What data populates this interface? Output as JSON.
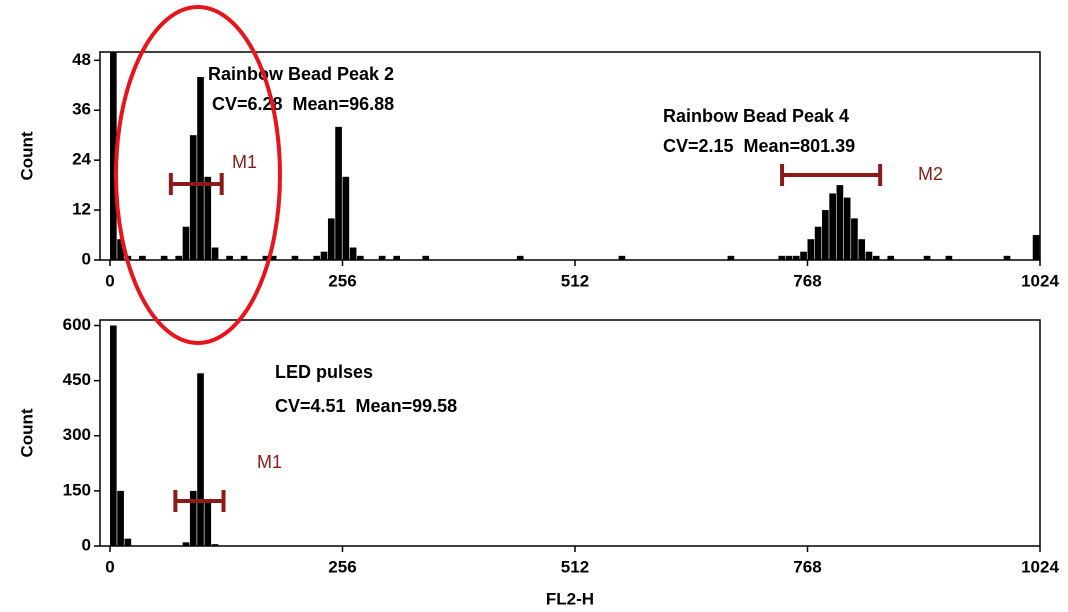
{
  "chart_data": [
    {
      "type": "histogram",
      "ylabel": "Count",
      "color": "#000000",
      "xlim": [
        -11,
        1024
      ],
      "ylim": [
        0,
        50
      ],
      "xticks": [
        0,
        256,
        512,
        768,
        1024
      ],
      "yticks": [
        0,
        12,
        24,
        36,
        48
      ],
      "bins": [
        0,
        8,
        16,
        24,
        32,
        40,
        48,
        56,
        64,
        72,
        80,
        88,
        96,
        104,
        112,
        120,
        128,
        136,
        144,
        152,
        160,
        168,
        176,
        184,
        192,
        200,
        208,
        216,
        224,
        232,
        240,
        248,
        256,
        264,
        272,
        280,
        288,
        296,
        304,
        312,
        320,
        328,
        336,
        344,
        352,
        360,
        368,
        376,
        384,
        392,
        400,
        408,
        416,
        424,
        432,
        440,
        448,
        456,
        464,
        472,
        480,
        488,
        496,
        504,
        512,
        520,
        528,
        536,
        544,
        552,
        560,
        568,
        576,
        584,
        592,
        600,
        608,
        616,
        624,
        632,
        640,
        648,
        656,
        664,
        672,
        680,
        688,
        696,
        704,
        712,
        720,
        728,
        736,
        744,
        752,
        760,
        768,
        776,
        784,
        792,
        800,
        808,
        816,
        824,
        832,
        840,
        848,
        856,
        864,
        872,
        880,
        888,
        896,
        904,
        912,
        920,
        928,
        936,
        944,
        952,
        960,
        968,
        976,
        984,
        992,
        1000,
        1008,
        1016,
        1024
      ],
      "values": [
        50,
        5,
        1,
        0,
        1,
        0,
        0,
        1,
        0,
        1,
        8,
        30,
        44,
        20,
        3,
        0,
        1,
        0,
        1,
        0,
        0,
        1,
        1,
        0,
        0,
        1,
        0,
        0,
        1,
        2,
        10,
        32,
        20,
        3,
        1,
        0,
        0,
        1,
        0,
        1,
        0,
        0,
        0,
        1,
        0,
        0,
        0,
        0,
        0,
        0,
        0,
        0,
        0,
        0,
        0,
        0,
        1,
        0,
        0,
        0,
        0,
        0,
        0,
        0,
        0,
        0,
        0,
        0,
        0,
        0,
        1,
        0,
        0,
        0,
        0,
        0,
        0,
        0,
        0,
        0,
        0,
        0,
        0,
        0,
        0,
        1,
        0,
        0,
        0,
        0,
        0,
        0,
        1,
        1,
        1,
        2,
        5,
        8,
        12,
        16,
        18,
        15,
        10,
        5,
        2,
        1,
        0,
        1,
        0,
        0,
        0,
        0,
        1,
        0,
        0,
        1,
        0,
        0,
        0,
        0,
        0,
        0,
        0,
        1,
        0,
        0,
        0,
        6
      ],
      "annotations": [
        "Rainbow Bead Peak 2",
        "CV=6.28  Mean=96.88",
        "Rainbow Bead Peak 4",
        "CV=2.15  Mean=801.39"
      ],
      "markers": [
        {
          "label": "M1",
          "range": [
            67,
            123
          ]
        },
        {
          "label": "M2",
          "range": [
            740,
            848
          ]
        }
      ]
    },
    {
      "type": "histogram",
      "ylabel": "Count",
      "xlabel": "FL2-H",
      "color": "#000000",
      "xlim": [
        -11,
        1024
      ],
      "ylim": [
        0,
        615
      ],
      "xticks": [
        0,
        256,
        512,
        768,
        1024
      ],
      "yticks": [
        0,
        150,
        300,
        450,
        600
      ],
      "bins": [
        0,
        8,
        16,
        24,
        32,
        40,
        48,
        56,
        64,
        72,
        80,
        88,
        96,
        104,
        112,
        120,
        128,
        136,
        144,
        152,
        160,
        168,
        176,
        184,
        192,
        200,
        208,
        216,
        224,
        232,
        240,
        248,
        256,
        264,
        272,
        280,
        288,
        296,
        304,
        312,
        320,
        328,
        336,
        344,
        352,
        360,
        368,
        376,
        384,
        392,
        400,
        408,
        416,
        424,
        432,
        440,
        448,
        456,
        464,
        472,
        480,
        488,
        496,
        504,
        512,
        520,
        528,
        536,
        544,
        552,
        560,
        568,
        576,
        584,
        592,
        600,
        608,
        616,
        624,
        632,
        640,
        648,
        656,
        664,
        672,
        680,
        688,
        696,
        704,
        712,
        720,
        728,
        736,
        744,
        752,
        760,
        768,
        776,
        784,
        792,
        800,
        808,
        816,
        824,
        832,
        840,
        848,
        856,
        864,
        872,
        880,
        888,
        896,
        904,
        912,
        920,
        928,
        936,
        944,
        952,
        960,
        968,
        976,
        984,
        992,
        1000,
        1008,
        1016,
        1024
      ],
      "values": [
        600,
        150,
        20,
        0,
        0,
        0,
        0,
        0,
        0,
        1,
        10,
        150,
        470,
        120,
        5,
        0,
        0,
        0,
        0,
        0,
        0,
        0,
        0,
        0,
        0,
        0,
        0,
        0,
        0,
        0,
        0,
        0,
        0,
        0,
        0,
        0,
        0,
        0,
        0,
        0,
        0,
        0,
        0,
        0,
        0,
        0,
        0,
        0,
        0,
        0,
        0,
        0,
        0,
        0,
        0,
        0,
        0,
        0,
        0,
        0,
        0,
        0,
        0,
        0,
        0,
        0,
        0,
        0,
        0,
        0,
        0,
        0,
        0,
        0,
        0,
        0,
        0,
        0,
        0,
        0,
        0,
        0,
        0,
        0,
        0,
        0,
        0,
        0,
        0,
        0,
        0,
        0,
        0,
        0,
        0,
        0,
        0,
        0,
        0,
        0,
        0,
        0,
        0,
        0,
        0,
        0,
        0,
        0,
        0,
        0,
        0,
        0,
        0,
        0,
        0,
        0,
        0,
        0,
        0,
        0,
        0,
        0,
        0,
        0,
        0,
        0,
        0,
        0
      ],
      "annotations": [
        "LED pulses",
        "CV=4.51  Mean=99.58"
      ],
      "markers": [
        {
          "label": "M1",
          "range": [
            72,
            125
          ]
        }
      ]
    }
  ]
}
